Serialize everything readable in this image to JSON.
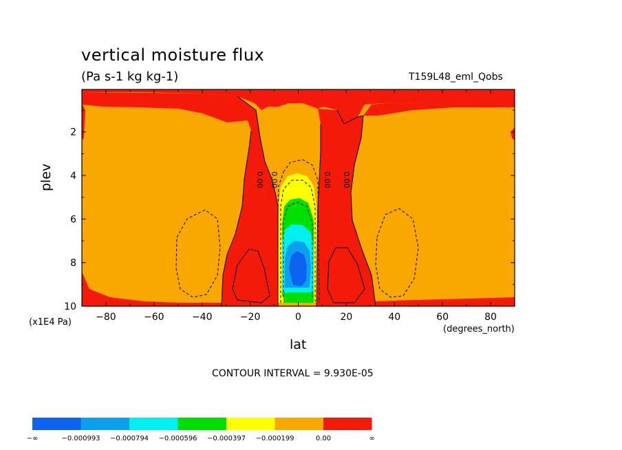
{
  "chart_data": {
    "type": "heatmap",
    "title": "vertical moisture flux",
    "units": "(Pa s-1 kg kg-1)",
    "case_label": "T159L48_eml_Qobs",
    "xlabel": "lat",
    "x_units": "(degrees_north)",
    "ylabel": "plev",
    "y_units": "(x1E4 Pa)",
    "xlim": [
      -90,
      90
    ],
    "ylim": [
      10,
      0
    ],
    "x_ticks": [
      -80,
      -60,
      -40,
      -20,
      0,
      20,
      40,
      60,
      80
    ],
    "y_ticks": [
      2,
      4,
      6,
      8,
      10
    ],
    "contour_interval_label": "CONTOUR INTERVAL = 9.930E-05",
    "contour_line_labels": [
      "0.00",
      "0.00",
      "0.00",
      "0.00"
    ],
    "colorbar": {
      "levels": [
        "-∞",
        "-0.000993",
        "-0.000794",
        "-0.000596",
        "-0.000397",
        "-0.000199",
        "0.00",
        "∞"
      ],
      "colors": [
        "#0a64ef",
        "#0aa0ef",
        "#00f0f0",
        "#00e000",
        "#ffff00",
        "#f8a800",
        "#f41a0a"
      ]
    },
    "features": [
      {
        "region": "background",
        "lat": [
          -90,
          90
        ],
        "plev": [
          0.3,
          10
        ],
        "color": "#f8a800"
      },
      {
        "region": "upper band",
        "lat": [
          -90,
          90
        ],
        "plev": [
          0.3,
          1.0
        ],
        "color": "#f41a0a"
      },
      {
        "region": "southern subtropical column",
        "lat": [
          -32,
          -10
        ],
        "plev": [
          0.3,
          10
        ],
        "color": "#f41a0a"
      },
      {
        "region": "northern subtropical column",
        "lat": [
          10,
          32
        ],
        "plev": [
          0.3,
          10
        ],
        "color": "#f41a0a"
      },
      {
        "region": "equatorial core",
        "lat": [
          -9,
          9
        ],
        "plev": [
          3.3,
          10
        ],
        "min_value": -0.000993
      }
    ]
  }
}
